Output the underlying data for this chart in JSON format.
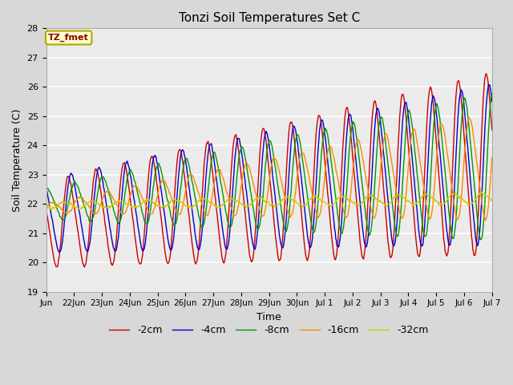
{
  "title": "Tonzi Soil Temperatures Set C",
  "xlabel": "Time",
  "ylabel": "Soil Temperature (C)",
  "ylim": [
    19.0,
    28.0
  ],
  "yticks": [
    19.0,
    20.0,
    21.0,
    22.0,
    23.0,
    24.0,
    25.0,
    26.0,
    27.0,
    28.0
  ],
  "xtick_positions": [
    1,
    2,
    3,
    4,
    5,
    6,
    7,
    8,
    9,
    10,
    11,
    12,
    13,
    14,
    15,
    16
  ],
  "xtick_labels": [
    "22Jun",
    "23Jun",
    "24Jun",
    "25Jun",
    "26Jun",
    "27Jun",
    "28Jun",
    "29Jun",
    "30Jun",
    "Jul 1",
    "Jul 2",
    "Jul 3",
    "Jul 4",
    "Jul 5",
    "Jul 6",
    "Jul 7"
  ],
  "xtick_extra_label": "Jun",
  "xtick_extra_pos": 0,
  "line_colors": [
    "#cc0000",
    "#0000cc",
    "#009900",
    "#ff8800",
    "#cccc00"
  ],
  "line_labels": [
    "-2cm",
    "-4cm",
    "-8cm",
    "-16cm",
    "-32cm"
  ],
  "background_color": "#d8d8d8",
  "plot_bg_color": "#ebebeb",
  "grid_color": "#ffffff",
  "annotation_text": "TZ_fmet",
  "annotation_bg": "#ffffcc",
  "annotation_border": "#aaaa00",
  "annotation_fg": "#880000"
}
